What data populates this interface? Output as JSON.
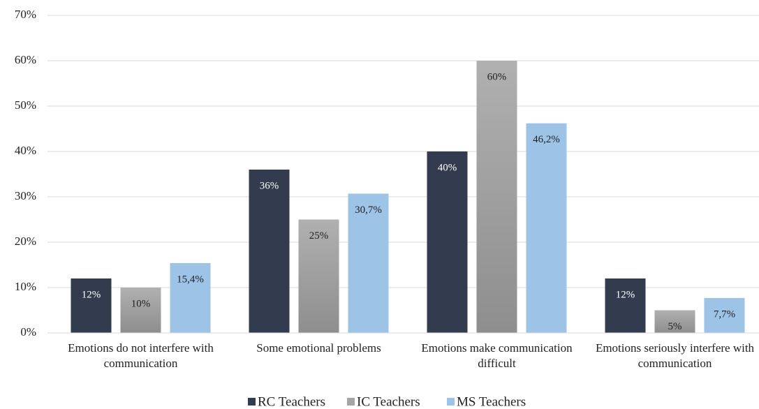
{
  "chart_data": {
    "type": "bar",
    "categories": [
      "Emotions do not interfere with communication",
      "Some emotional problems",
      "Emotions make communication difficult",
      "Emotions seriously interfere with communication"
    ],
    "series": [
      {
        "name": "RC Teachers",
        "color": "#323c4e",
        "values": [
          12,
          36,
          40,
          12
        ],
        "value_labels": [
          "12%",
          "36%",
          "40%",
          "12%"
        ]
      },
      {
        "name": "IC Teachers",
        "color": "#a5a5a5",
        "values": [
          10,
          25,
          60,
          5
        ],
        "value_labels": [
          "10%",
          "25%",
          "60%",
          "5%"
        ]
      },
      {
        "name": "MS Teachers",
        "color": "#9dc3e6",
        "values": [
          15.4,
          30.7,
          46.2,
          7.7
        ],
        "value_labels": [
          "15,4%",
          "30,7%",
          "46,2%",
          "7,7%"
        ]
      }
    ],
    "ylim": [
      0,
      70
    ],
    "yticks": [
      {
        "value": 0,
        "label": "0%"
      },
      {
        "value": 10,
        "label": "10%"
      },
      {
        "value": 20,
        "label": "20%"
      },
      {
        "value": 30,
        "label": "30%"
      },
      {
        "value": 40,
        "label": "40%"
      },
      {
        "value": 50,
        "label": "50%"
      },
      {
        "value": 60,
        "label": "60%"
      },
      {
        "value": 70,
        "label": "70%"
      }
    ],
    "grid": true,
    "legend": "bottom"
  }
}
